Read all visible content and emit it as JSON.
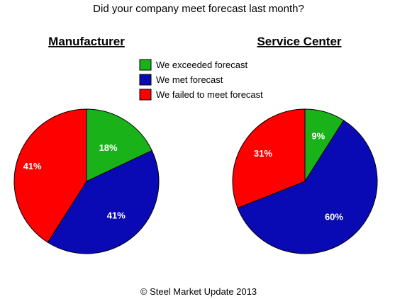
{
  "chart_data": {
    "type": "pie",
    "title": "Did your company meet forecast last month?",
    "footer": "© Steel Market Update 2013",
    "legend": {
      "placement": "top-center",
      "entries": [
        {
          "label": "We exceeded forecast",
          "color": "#19b219"
        },
        {
          "label": "We met forecast",
          "color": "#0a0ab4"
        },
        {
          "label": "We failed to meet forecast",
          "color": "#ff0000"
        }
      ]
    },
    "charts": [
      {
        "title": "Manufacturer",
        "slices": [
          {
            "category": "We exceeded forecast",
            "value": 18,
            "label": "18%",
            "color": "#19b219"
          },
          {
            "category": "We met forecast",
            "value": 41,
            "label": "41%",
            "color": "#0a0ab4"
          },
          {
            "category": "We failed to meet forecast",
            "value": 41,
            "label": "41%",
            "color": "#ff0000"
          }
        ]
      },
      {
        "title": "Service Center",
        "slices": [
          {
            "category": "We exceeded forecast",
            "value": 9,
            "label": "9%",
            "color": "#19b219"
          },
          {
            "category": "We met forecast",
            "value": 60,
            "label": "60%",
            "color": "#0a0ab4"
          },
          {
            "category": "We failed to meet forecast",
            "value": 31,
            "label": "31%",
            "color": "#ff0000"
          }
        ]
      }
    ]
  }
}
